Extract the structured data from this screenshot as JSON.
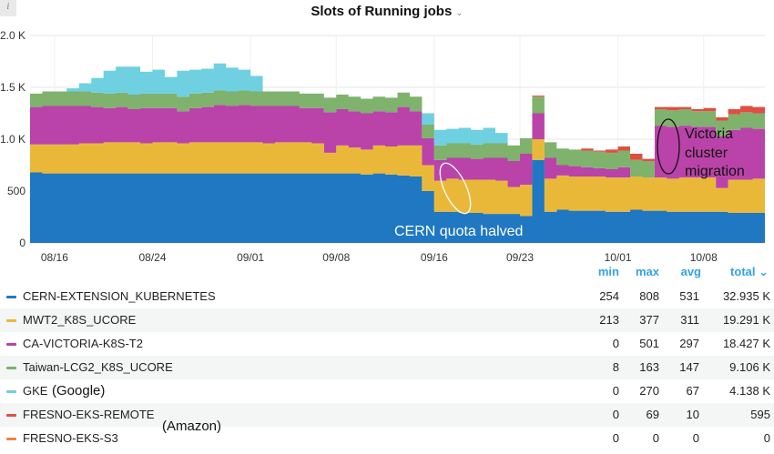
{
  "panel": {
    "title": "Slots of Running jobs",
    "title_chevron": "⌄",
    "info_icon": "i"
  },
  "legend": {
    "headers": {
      "min": "min",
      "max": "max",
      "avg": "avg",
      "total": "total ⌄"
    },
    "rows": [
      {
        "name": "CERN-EXTENSION_KUBERNETES",
        "color": "#1f78c1",
        "min": "254",
        "max": "808",
        "avg": "531",
        "total": "32.935 K"
      },
      {
        "name": "MWT2_K8S_UCORE",
        "color": "#eab839",
        "min": "213",
        "max": "377",
        "avg": "311",
        "total": "19.291 K"
      },
      {
        "name": "CA-VICTORIA-K8S-T2",
        "color": "#ba43a9",
        "min": "0",
        "max": "501",
        "avg": "297",
        "total": "18.427 K"
      },
      {
        "name": "Taiwan-LCG2_K8S_UCORE",
        "color": "#7eb26d",
        "min": "8",
        "max": "163",
        "avg": "147",
        "total": "9.106 K"
      },
      {
        "name": "GKE",
        "color": "#6ed0e0",
        "min": "0",
        "max": "270",
        "avg": "67",
        "total": "4.138 K"
      },
      {
        "name": "FRESNO-EKS-REMOTE",
        "color": "#e24d42",
        "min": "0",
        "max": "69",
        "avg": "10",
        "total": "595"
      },
      {
        "name": "FRESNO-EKS-S3",
        "color": "#ef843c",
        "min": "0",
        "max": "0",
        "avg": "0",
        "total": "0"
      }
    ]
  },
  "annotations": {
    "cern_note": "CERN quota halved",
    "victoria_note_1": "Victoria",
    "victoria_note_2": "cluster",
    "victoria_note_3": "migration",
    "gke_note": "(Google)",
    "fresno_note": "(Amazon)"
  },
  "chart_data": {
    "type": "area",
    "stacked": true,
    "title": "Slots of Running jobs",
    "xlabel": "",
    "ylabel": "",
    "ylim": [
      0,
      2000
    ],
    "yticks": [
      0,
      500,
      1000,
      1500,
      2000
    ],
    "ytick_labels": [
      "0",
      "500",
      "1.0 K",
      "1.5 K",
      "2.0 K"
    ],
    "xtick_labels": [
      "08/16",
      "08/24",
      "09/01",
      "09/08",
      "09/16",
      "09/23",
      "10/01",
      "10/08"
    ],
    "xtick_positions": [
      2,
      10,
      18,
      25,
      33,
      40,
      48,
      55
    ],
    "x_range": [
      0,
      59
    ],
    "grid": true,
    "legend_placement": "bottom",
    "series": [
      {
        "name": "CERN-EXTENSION_KUBERNETES",
        "color": "#1f78c1",
        "values": [
          680,
          670,
          670,
          670,
          670,
          670,
          670,
          670,
          670,
          670,
          670,
          670,
          670,
          670,
          670,
          670,
          670,
          670,
          670,
          670,
          670,
          670,
          670,
          670,
          670,
          670,
          670,
          660,
          670,
          660,
          650,
          640,
          500,
          300,
          300,
          290,
          290,
          280,
          280,
          280,
          260,
          800,
          300,
          320,
          310,
          310,
          310,
          300,
          300,
          320,
          310,
          310,
          300,
          300,
          300,
          300,
          300,
          290,
          290,
          290
        ]
      },
      {
        "name": "MWT2_K8S_UCORE",
        "color": "#eab839",
        "values": [
          270,
          280,
          280,
          280,
          290,
          290,
          300,
          300,
          300,
          290,
          300,
          300,
          290,
          300,
          300,
          300,
          300,
          300,
          300,
          290,
          300,
          300,
          300,
          290,
          200,
          270,
          250,
          240,
          270,
          270,
          290,
          300,
          250,
          300,
          320,
          320,
          320,
          330,
          320,
          260,
          300,
          200,
          320,
          330,
          330,
          330,
          330,
          330,
          330,
          320,
          320,
          320,
          320,
          330,
          330,
          330,
          230,
          320,
          320,
          330
        ]
      },
      {
        "name": "CA-VICTORIA-K8S-T2",
        "color": "#ba43a9",
        "values": [
          360,
          370,
          370,
          370,
          360,
          350,
          330,
          340,
          320,
          340,
          330,
          330,
          310,
          330,
          340,
          360,
          350,
          360,
          350,
          360,
          350,
          350,
          330,
          340,
          390,
          350,
          350,
          350,
          330,
          330,
          370,
          330,
          260,
          200,
          200,
          210,
          200,
          210,
          220,
          250,
          300,
          250,
          200,
          100,
          100,
          90,
          80,
          80,
          100,
          0,
          0,
          500,
          500,
          500,
          490,
          490,
          500,
          480,
          500,
          480
        ]
      },
      {
        "name": "Taiwan-LCG2_K8S_UCORE",
        "color": "#7eb26d",
        "values": [
          130,
          140,
          140,
          140,
          140,
          140,
          140,
          140,
          140,
          140,
          140,
          140,
          140,
          140,
          140,
          140,
          140,
          140,
          140,
          140,
          140,
          140,
          140,
          140,
          140,
          140,
          140,
          140,
          140,
          140,
          140,
          140,
          130,
          140,
          140,
          140,
          140,
          140,
          140,
          150,
          150,
          160,
          150,
          160,
          160,
          160,
          160,
          160,
          160,
          160,
          160,
          160,
          160,
          160,
          150,
          150,
          150,
          150,
          150,
          150
        ]
      },
      {
        "name": "GKE",
        "color": "#6ed0e0",
        "values": [
          0,
          0,
          0,
          30,
          80,
          140,
          220,
          250,
          270,
          210,
          230,
          160,
          250,
          230,
          230,
          260,
          230,
          200,
          150,
          0,
          0,
          0,
          0,
          0,
          0,
          0,
          0,
          0,
          0,
          0,
          0,
          0,
          110,
          150,
          140,
          150,
          140,
          150,
          100,
          0,
          0,
          0,
          0,
          0,
          0,
          0,
          0,
          0,
          0,
          0,
          0,
          0,
          0,
          0,
          0,
          0,
          0,
          0,
          0,
          0
        ]
      },
      {
        "name": "FRESNO-EKS-REMOTE",
        "color": "#e24d42",
        "values": [
          0,
          0,
          0,
          0,
          0,
          0,
          0,
          0,
          0,
          0,
          0,
          0,
          0,
          0,
          0,
          0,
          0,
          0,
          0,
          0,
          0,
          0,
          0,
          0,
          0,
          0,
          0,
          0,
          0,
          0,
          0,
          0,
          0,
          0,
          0,
          0,
          0,
          0,
          0,
          0,
          0,
          10,
          0,
          0,
          0,
          20,
          10,
          30,
          40,
          60,
          20,
          20,
          30,
          20,
          20,
          30,
          30,
          50,
          60,
          60
        ]
      },
      {
        "name": "FRESNO-EKS-S3",
        "color": "#ef843c",
        "values": [
          0,
          0,
          0,
          0,
          0,
          0,
          0,
          0,
          0,
          0,
          0,
          0,
          0,
          0,
          0,
          0,
          0,
          0,
          0,
          0,
          0,
          0,
          0,
          0,
          0,
          0,
          0,
          0,
          0,
          0,
          0,
          0,
          0,
          0,
          0,
          0,
          0,
          0,
          0,
          0,
          0,
          0,
          0,
          0,
          0,
          0,
          0,
          0,
          0,
          0,
          0,
          0,
          0,
          0,
          0,
          0,
          0,
          0,
          0,
          0
        ]
      }
    ]
  }
}
